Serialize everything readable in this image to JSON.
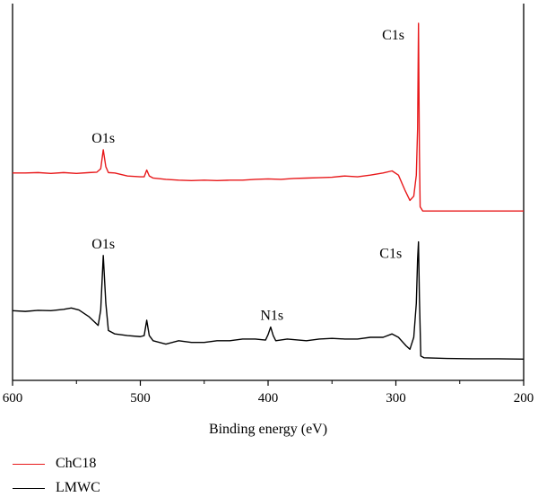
{
  "chart_data": {
    "type": "line",
    "xlabel": "Binding energy (eV)",
    "ylabel": "",
    "xlim": [
      600,
      200
    ],
    "x_reversed": true,
    "xticks": [
      600,
      500,
      400,
      300,
      200
    ],
    "yticks": false,
    "grid": false,
    "legend_position": "bottom-left, below plot",
    "y_scale": "arbitrary, stacked offset traces",
    "series": [
      {
        "name": "ChC18",
        "color": "#e8191b",
        "points": [
          [
            600,
            0.45
          ],
          [
            590,
            0.45
          ],
          [
            580,
            0.46
          ],
          [
            570,
            0.44
          ],
          [
            560,
            0.46
          ],
          [
            550,
            0.44
          ],
          [
            540,
            0.46
          ],
          [
            534,
            0.47
          ],
          [
            531,
            0.55
          ],
          [
            529,
            1.0
          ],
          [
            527,
            0.6
          ],
          [
            525,
            0.46
          ],
          [
            520,
            0.45
          ],
          [
            510,
            0.38
          ],
          [
            500,
            0.36
          ],
          [
            497,
            0.36
          ],
          [
            495,
            0.52
          ],
          [
            493,
            0.38
          ],
          [
            490,
            0.33
          ],
          [
            480,
            0.3
          ],
          [
            470,
            0.28
          ],
          [
            460,
            0.27
          ],
          [
            450,
            0.28
          ],
          [
            440,
            0.27
          ],
          [
            430,
            0.28
          ],
          [
            420,
            0.28
          ],
          [
            410,
            0.3
          ],
          [
            400,
            0.31
          ],
          [
            390,
            0.3
          ],
          [
            380,
            0.32
          ],
          [
            370,
            0.33
          ],
          [
            360,
            0.34
          ],
          [
            350,
            0.35
          ],
          [
            340,
            0.38
          ],
          [
            330,
            0.36
          ],
          [
            320,
            0.4
          ],
          [
            310,
            0.45
          ],
          [
            303,
            0.5
          ],
          [
            298,
            0.4
          ],
          [
            293,
            0.05
          ],
          [
            289,
            -0.2
          ],
          [
            286,
            -0.1
          ],
          [
            284,
            0.4
          ],
          [
            283,
            1.5
          ],
          [
            282.3,
            4.0
          ],
          [
            281.6,
            1.0
          ],
          [
            281,
            -0.35
          ],
          [
            279,
            -0.45
          ],
          [
            270,
            -0.45
          ],
          [
            250,
            -0.45
          ],
          [
            230,
            -0.45
          ],
          [
            200,
            -0.45
          ]
        ]
      },
      {
        "name": "LMWC",
        "color": "#000000",
        "points": [
          [
            600,
            0.78
          ],
          [
            590,
            0.76
          ],
          [
            580,
            0.79
          ],
          [
            570,
            0.78
          ],
          [
            560,
            0.82
          ],
          [
            554,
            0.86
          ],
          [
            548,
            0.8
          ],
          [
            540,
            0.6
          ],
          [
            533,
            0.35
          ],
          [
            531,
            0.8
          ],
          [
            529,
            2.4
          ],
          [
            527,
            1.0
          ],
          [
            525,
            0.2
          ],
          [
            520,
            0.1
          ],
          [
            510,
            0.05
          ],
          [
            500,
            0.02
          ],
          [
            497,
            0.05
          ],
          [
            495,
            0.5
          ],
          [
            493,
            0.05
          ],
          [
            490,
            -0.1
          ],
          [
            480,
            -0.2
          ],
          [
            470,
            -0.1
          ],
          [
            460,
            -0.15
          ],
          [
            450,
            -0.15
          ],
          [
            440,
            -0.1
          ],
          [
            430,
            -0.1
          ],
          [
            420,
            -0.05
          ],
          [
            410,
            -0.05
          ],
          [
            402,
            -0.08
          ],
          [
            400,
            0.08
          ],
          [
            398,
            0.3
          ],
          [
            396,
            0.05
          ],
          [
            394,
            -0.1
          ],
          [
            385,
            -0.05
          ],
          [
            370,
            -0.1
          ],
          [
            360,
            -0.05
          ],
          [
            350,
            -0.03
          ],
          [
            340,
            -0.05
          ],
          [
            330,
            -0.05
          ],
          [
            320,
            0.0
          ],
          [
            310,
            0.0
          ],
          [
            303,
            0.1
          ],
          [
            298,
            0.0
          ],
          [
            292,
            -0.25
          ],
          [
            289,
            -0.35
          ],
          [
            286,
            0.0
          ],
          [
            284,
            1.0
          ],
          [
            283,
            2.3
          ],
          [
            282.3,
            2.8
          ],
          [
            281.6,
            1.2
          ],
          [
            280.5,
            -0.55
          ],
          [
            278,
            -0.6
          ],
          [
            260,
            -0.62
          ],
          [
            240,
            -0.63
          ],
          [
            220,
            -0.63
          ],
          [
            200,
            -0.64
          ]
        ]
      }
    ],
    "annotations": [
      {
        "text": "C1s",
        "x": 281,
        "series": "ChC18"
      },
      {
        "text": "O1s",
        "x": 529,
        "series": "ChC18"
      },
      {
        "text": "O1s",
        "x": 529,
        "series": "LMWC"
      },
      {
        "text": "N1s",
        "x": 397,
        "series": "LMWC"
      },
      {
        "text": "C1s",
        "x": 283,
        "series": "LMWC"
      }
    ]
  }
}
